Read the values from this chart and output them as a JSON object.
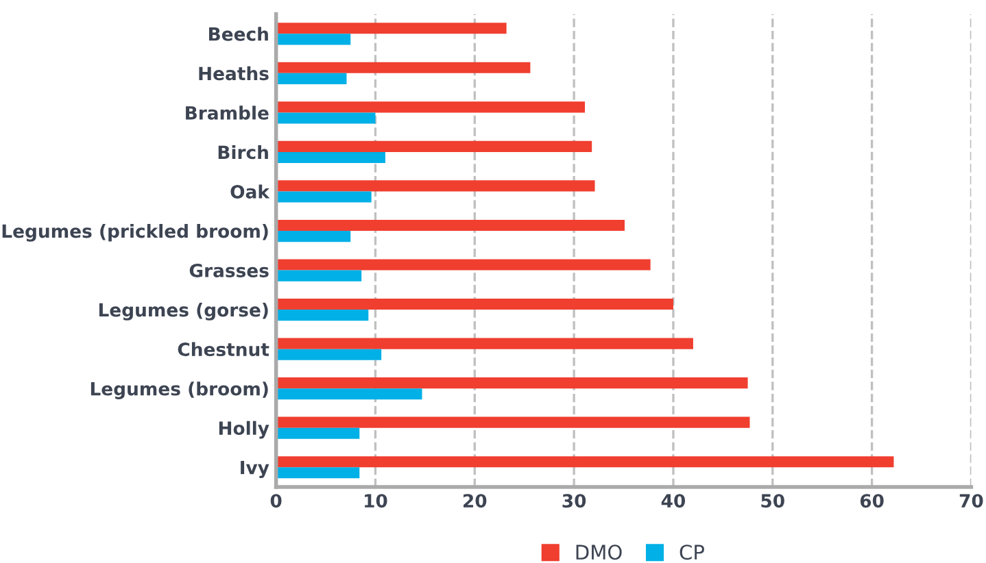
{
  "chart_data": {
    "type": "bar",
    "orientation": "horizontal",
    "categories": [
      "Beech",
      "Heaths",
      "Bramble",
      "Birch",
      "Oak",
      "Legumes (prickled broom)",
      "Grasses",
      "Legumes (gorse)",
      "Chestnut",
      "Legumes (broom)",
      "Holly",
      "Ivy"
    ],
    "series": [
      {
        "name": "DMO",
        "color": "#f03e2f",
        "values": [
          23.2,
          25.6,
          31.1,
          31.8,
          32.1,
          35.1,
          37.7,
          40.0,
          42.0,
          47.5,
          47.7,
          62.2
        ]
      },
      {
        "name": "CP",
        "color": "#00b0e6",
        "values": [
          7.5,
          7.1,
          10.0,
          11.0,
          9.6,
          7.5,
          8.6,
          9.3,
          10.6,
          14.7,
          8.4,
          8.4
        ]
      }
    ],
    "xlim": [
      0,
      70
    ],
    "xticks": [
      0,
      10,
      20,
      30,
      40,
      50,
      60,
      70
    ],
    "grid": "x",
    "legend": "bottom"
  }
}
